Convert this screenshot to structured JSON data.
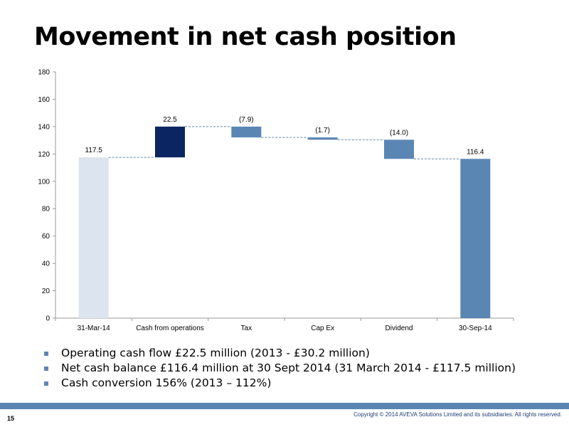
{
  "slide": {
    "title": "Movement in net cash position",
    "page_number": "15",
    "copyright": "Copyright © 2014 AVEVA Solutions Limited and its subsidiaries. All rights reserved."
  },
  "bullets": [
    "Operating cash flow £22.5 million (2013 - £30.2 million)",
    "Net cash balance £116.4 million at 30 Sept 2014 (31 March 2014 - £117.5 million)",
    "Cash conversion 156% (2013 – 112%)"
  ],
  "colors": {
    "accent": "#5a86b4",
    "opening_bar": "#dce4f0",
    "increase_bar": "#0b2462",
    "decrease_bar": "#5a86b4",
    "closing_bar": "#5a86b4",
    "connector": "#5a86b4"
  },
  "chart_data": {
    "type": "bar",
    "subtype": "waterfall",
    "categories": [
      "31-Mar-14",
      "Cash from operations",
      "Tax",
      "Cap Ex",
      "Dividend",
      "30-Sep-14"
    ],
    "values": [
      117.5,
      22.5,
      -7.9,
      -1.7,
      -14.0,
      116.4
    ],
    "kinds": [
      "total",
      "delta",
      "delta",
      "delta",
      "delta",
      "total"
    ],
    "data_labels": [
      "117.5",
      "22.5",
      "(7.9)",
      "(1.7)",
      "(14.0)",
      "116.4"
    ],
    "ylim": [
      0,
      180
    ],
    "yticks": [
      0,
      20,
      40,
      60,
      80,
      100,
      120,
      140,
      160,
      180
    ],
    "connectors": "dashed",
    "gridlines": false
  }
}
